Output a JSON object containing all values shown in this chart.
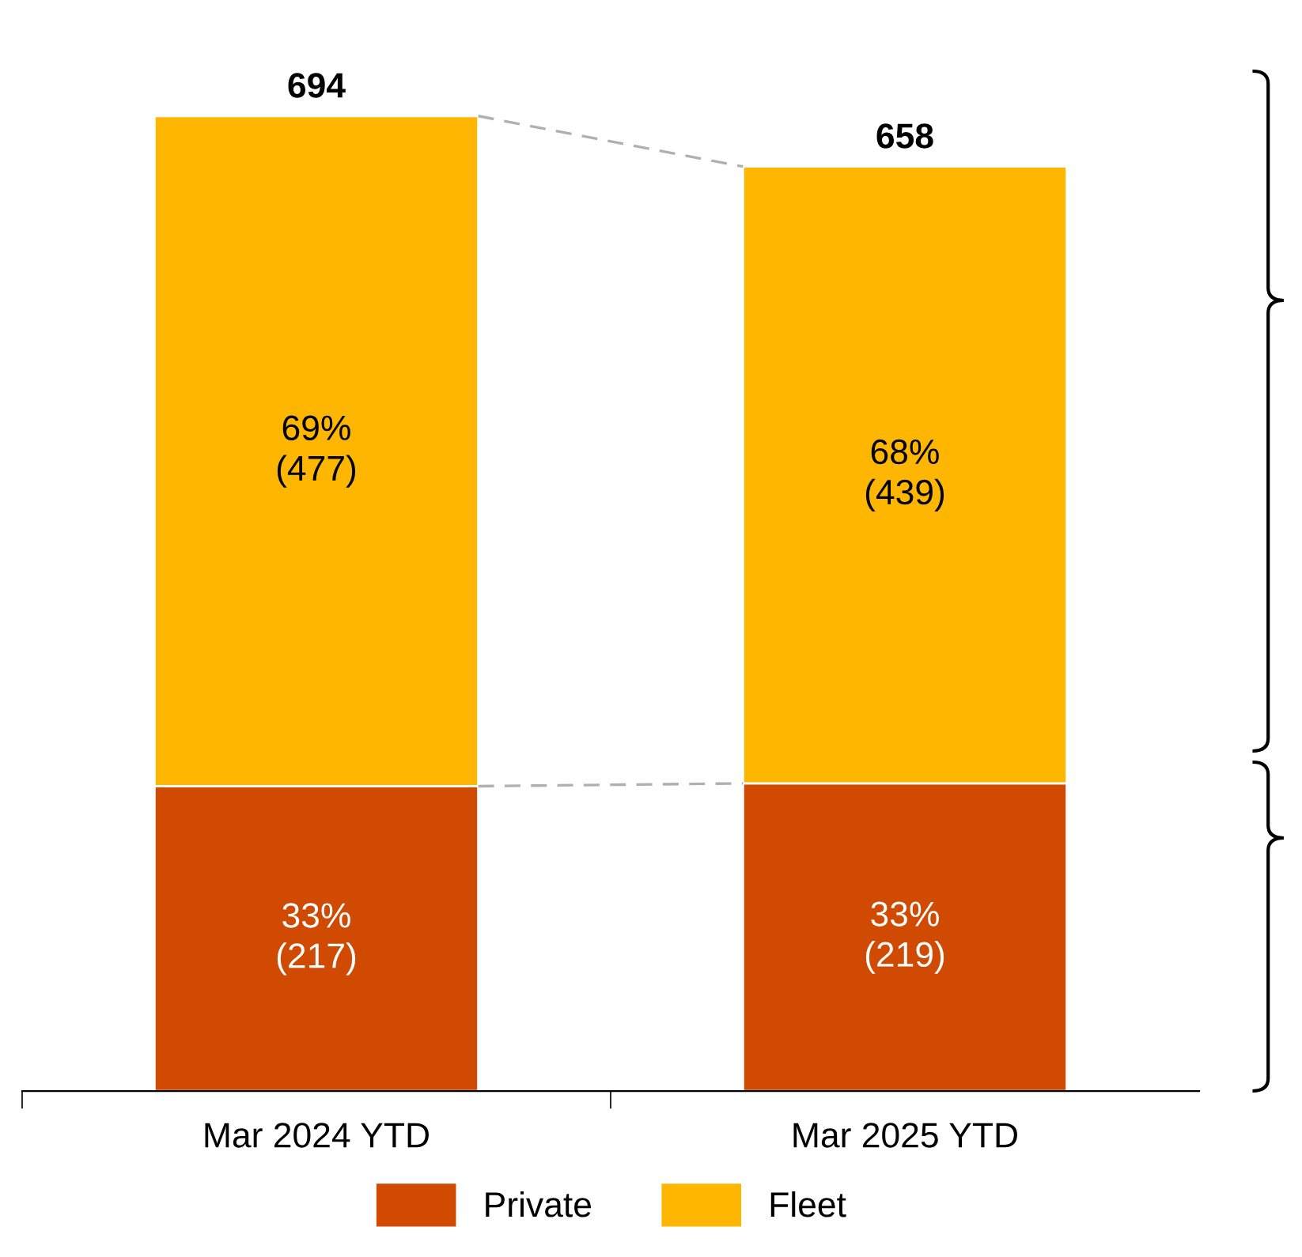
{
  "chart_data": {
    "type": "bar",
    "stacked": true,
    "categories": [
      "Mar 2024 YTD",
      "Mar 2025 YTD"
    ],
    "series": [
      {
        "name": "Private",
        "color": "#d04a02",
        "values": [
          217,
          219
        ],
        "value_labels": [
          "33%\n(217)",
          "33%\n(219)"
        ]
      },
      {
        "name": "Fleet",
        "color": "#ffb600",
        "values": [
          477,
          439
        ],
        "value_labels": [
          "69%\n(477)",
          "68%\n(439)"
        ]
      }
    ],
    "totals": [
      "694",
      "658"
    ],
    "legend": "bottom",
    "grid": false
  }
}
